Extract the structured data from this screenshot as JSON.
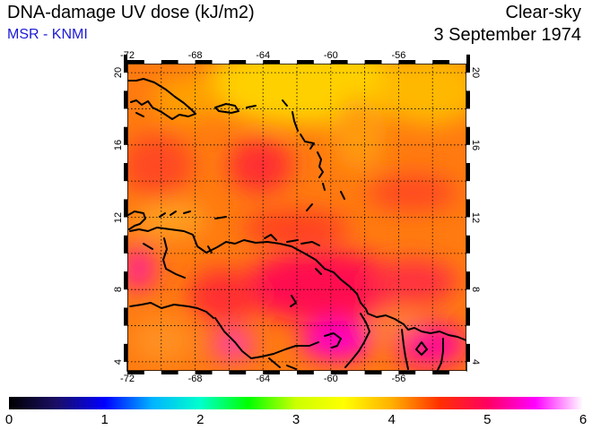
{
  "header": {
    "title": "DNA-damage UV dose (kJ/m2)",
    "subtitle": "MSR - KNMI",
    "mode": "Clear-sky",
    "date": "3 September 1974"
  },
  "map": {
    "lon_range": [
      -72,
      -52
    ],
    "lat_range": [
      3.5,
      20.5
    ],
    "lon_ticks": [
      "-72",
      "-68",
      "-64",
      "-60",
      "-56"
    ],
    "lat_ticks": [
      "4",
      "8",
      "12",
      "16",
      "20"
    ],
    "grid": true,
    "region": "Caribbean / northern South America"
  },
  "colorbar": {
    "labels": [
      "0",
      "1",
      "2",
      "3",
      "4",
      "5",
      "6"
    ],
    "min": 0,
    "max": 6,
    "stops": [
      "#000000",
      "#1a0f66",
      "#0000ff",
      "#00b4ff",
      "#00ffcc",
      "#00ff00",
      "#ccff00",
      "#ffff00",
      "#ffb000",
      "#ff3000",
      "#ff0060",
      "#ff00ff",
      "#ffffff"
    ]
  }
}
